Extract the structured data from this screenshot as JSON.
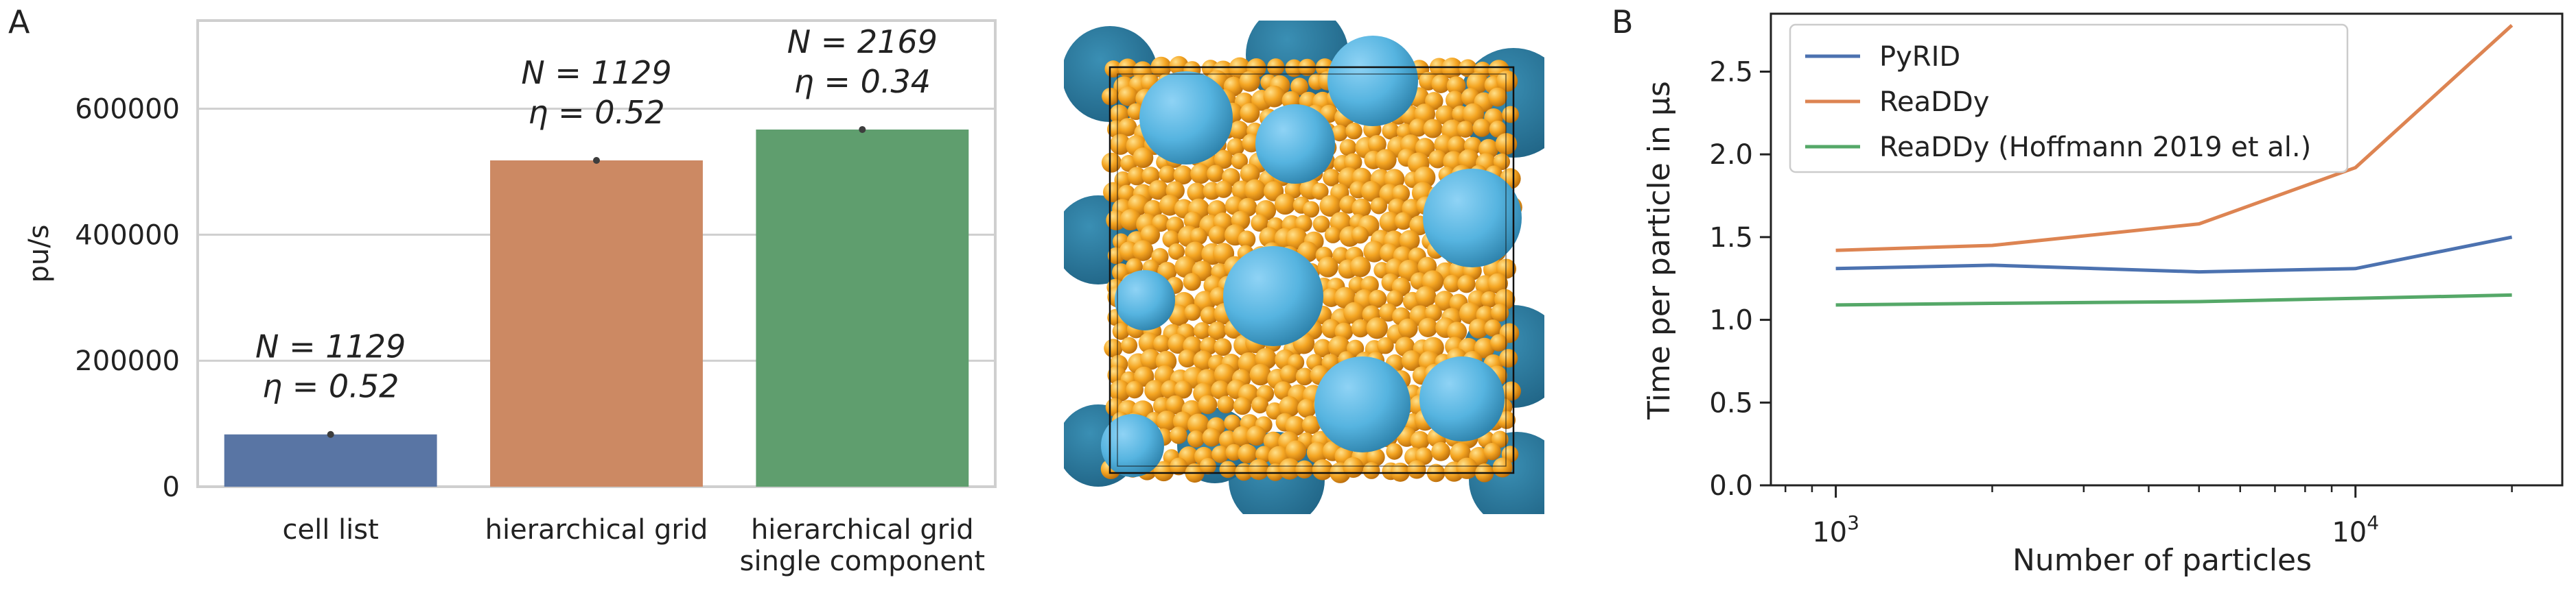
{
  "panel_labels": {
    "a": "A",
    "b": "B"
  },
  "colors": {
    "cell_list": "#5975a4",
    "hierarchical_grid": "#cc8963",
    "hierarchical_grid_single": "#5f9e6e",
    "pyrid": "#4c72b0",
    "readdy": "#dd8452",
    "readdy_hoffmann": "#55a868",
    "big_sphere": "#56b4e0",
    "small_sphere": "#f5a623"
  },
  "chart_data": [
    {
      "type": "bar",
      "title": "",
      "xlabel": "",
      "ylabel": "pu/s",
      "ylim": [
        0,
        740000
      ],
      "yticks": [
        0,
        200000,
        400000,
        600000
      ],
      "ytick_labels": [
        "0",
        "200000",
        "400000",
        "600000"
      ],
      "categories": [
        [
          "cell list"
        ],
        [
          "hierarchical grid"
        ],
        [
          "hierarchical grid",
          "single component"
        ]
      ],
      "values": [
        83000,
        518000,
        567000
      ],
      "errors": [
        2000,
        4000,
        4000
      ],
      "annotations": [
        [
          "N = 1129",
          "η = 0.52"
        ],
        [
          "N = 1129",
          "η = 0.52"
        ],
        [
          "N = 2169",
          "η = 0.34"
        ]
      ],
      "grid": "y"
    },
    {
      "type": "line",
      "title": "",
      "xlabel": "Number of particles",
      "ylabel": "Time per particle in μs",
      "xscale": "log",
      "xlim": [
        750,
        25000
      ],
      "ylim": [
        0.0,
        2.85
      ],
      "xticks": [
        1000,
        10000
      ],
      "xtick_labels": [
        [
          "10",
          "3"
        ],
        [
          "10",
          "4"
        ]
      ],
      "yticks": [
        0.0,
        0.5,
        1.0,
        1.5,
        2.0,
        2.5
      ],
      "ytick_labels": [
        "0.0",
        "0.5",
        "1.0",
        "1.5",
        "2.0",
        "2.5"
      ],
      "x": [
        1000,
        2000,
        5000,
        10000,
        20000
      ],
      "series": [
        {
          "name": "PyRID",
          "values": [
            1.31,
            1.33,
            1.29,
            1.31,
            1.5
          ]
        },
        {
          "name": "ReaDDy",
          "values": [
            1.42,
            1.45,
            1.58,
            1.92,
            2.78
          ]
        },
        {
          "name": "ReaDDy (Hoffmann 2019 et al.)",
          "values": [
            1.09,
            1.1,
            1.11,
            1.13,
            1.15
          ]
        }
      ],
      "legend": "top-left",
      "grid": "none"
    }
  ]
}
